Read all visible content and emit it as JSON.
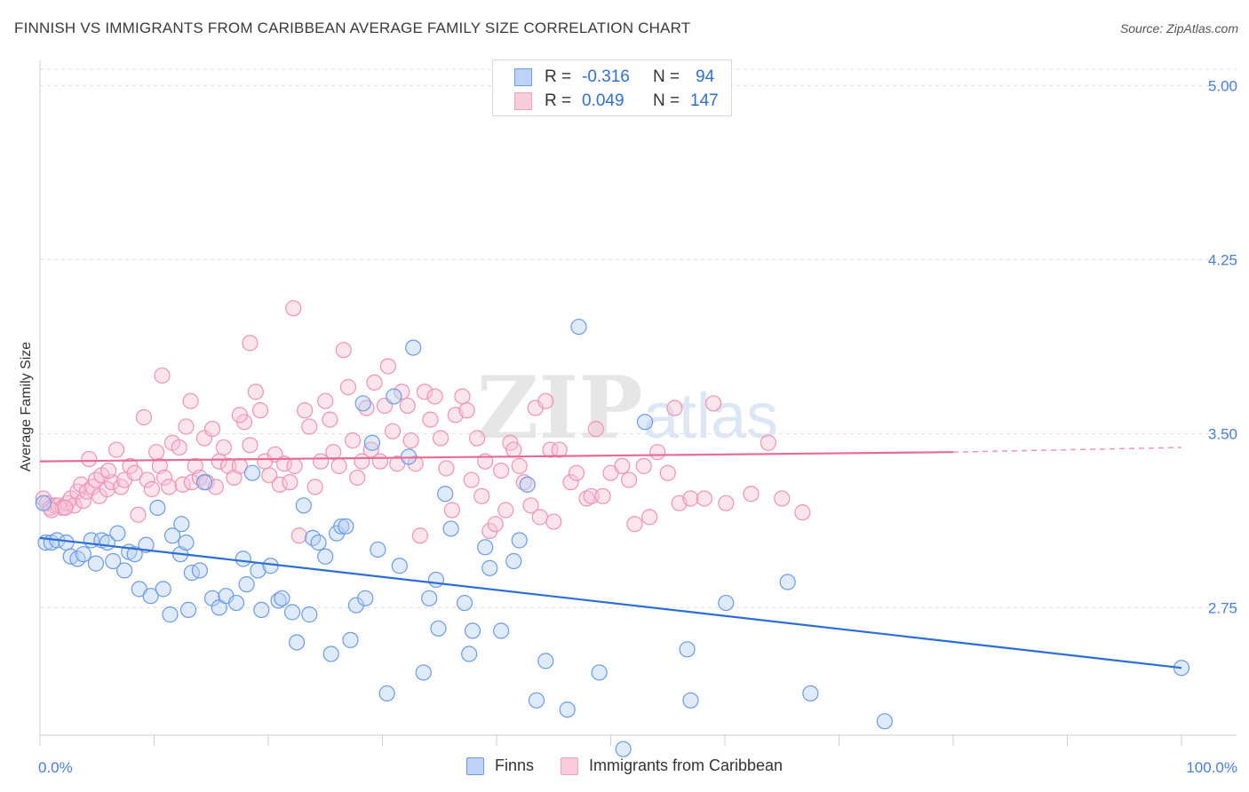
{
  "header": {
    "title": "FINNISH VS IMMIGRANTS FROM CARIBBEAN AVERAGE FAMILY SIZE CORRELATION CHART",
    "source": "Source: ZipAtlas.com"
  },
  "watermark": {
    "zip": "ZIP",
    "atlas": "atlas"
  },
  "legend_top": {
    "rows": [
      {
        "r_label": "R =",
        "r_value": "-0.316",
        "n_label": "N =",
        "n_value": "94",
        "color": "#6b9be6"
      },
      {
        "r_label": "R =",
        "r_value": "0.049",
        "n_label": "N =",
        "n_value": "147",
        "color": "#f0a0bb"
      }
    ]
  },
  "legend_bottom": {
    "items": [
      {
        "label": "Finns",
        "color": "#6b9be6"
      },
      {
        "label": "Immigrants from Caribbean",
        "color": "#f0a0bb"
      }
    ]
  },
  "chart_data": {
    "type": "scatter",
    "title": "FINNISH VS IMMIGRANTS FROM CARIBBEAN AVERAGE FAMILY SIZE CORRELATION CHART",
    "ylabel": "Average Family Size",
    "xlabel": "",
    "xlim": [
      0,
      100
    ],
    "ylim": [
      2.2,
      5.07
    ],
    "y_ticks": [
      2.75,
      3.5,
      4.25,
      5.0
    ],
    "y_tick_labels": [
      "2.75",
      "3.50",
      "4.25",
      "5.00"
    ],
    "x_tick_labels": [
      "0.0%",
      "100.0%"
    ],
    "grid": "horizontal dashed",
    "legend_placement": "top-center",
    "series": [
      {
        "name": "Finns",
        "color": "#6b9be6",
        "line_color": "#2b6fd6",
        "trend": {
          "x": [
            0,
            100
          ],
          "y": [
            3.05,
            2.49
          ]
        },
        "points": [
          [
            0.3,
            3.2
          ],
          [
            0.5,
            3.03
          ],
          [
            1.0,
            3.03
          ],
          [
            1.5,
            3.04
          ],
          [
            2.3,
            3.03
          ],
          [
            2.7,
            2.97
          ],
          [
            3.3,
            2.96
          ],
          [
            3.8,
            2.98
          ],
          [
            4.5,
            3.04
          ],
          [
            4.9,
            2.94
          ],
          [
            5.4,
            3.04
          ],
          [
            5.9,
            3.03
          ],
          [
            6.4,
            2.95
          ],
          [
            6.8,
            3.07
          ],
          [
            7.4,
            2.91
          ],
          [
            7.8,
            2.99
          ],
          [
            8.3,
            2.98
          ],
          [
            8.7,
            2.83
          ],
          [
            9.3,
            3.02
          ],
          [
            9.7,
            2.8
          ],
          [
            10.3,
            3.18
          ],
          [
            10.8,
            2.83
          ],
          [
            11.4,
            2.72
          ],
          [
            11.6,
            3.06
          ],
          [
            12.3,
            2.98
          ],
          [
            12.4,
            3.11
          ],
          [
            12.8,
            3.03
          ],
          [
            13.0,
            2.74
          ],
          [
            13.3,
            2.9
          ],
          [
            14.0,
            2.91
          ],
          [
            14.4,
            3.29
          ],
          [
            15.1,
            2.79
          ],
          [
            15.7,
            2.75
          ],
          [
            16.3,
            2.8
          ],
          [
            17.2,
            2.77
          ],
          [
            17.8,
            2.96
          ],
          [
            18.1,
            2.85
          ],
          [
            18.6,
            3.33
          ],
          [
            19.1,
            2.91
          ],
          [
            19.4,
            2.74
          ],
          [
            20.2,
            2.93
          ],
          [
            20.9,
            2.78
          ],
          [
            21.2,
            2.79
          ],
          [
            22.1,
            2.73
          ],
          [
            22.5,
            2.6
          ],
          [
            23.1,
            3.19
          ],
          [
            23.6,
            2.72
          ],
          [
            23.9,
            3.05
          ],
          [
            24.4,
            3.03
          ],
          [
            25.0,
            2.97
          ],
          [
            25.5,
            2.55
          ],
          [
            26.0,
            3.07
          ],
          [
            26.4,
            3.1
          ],
          [
            26.8,
            3.1
          ],
          [
            27.2,
            2.61
          ],
          [
            27.7,
            2.76
          ],
          [
            28.3,
            3.63
          ],
          [
            28.5,
            2.79
          ],
          [
            29.1,
            3.46
          ],
          [
            29.6,
            3.0
          ],
          [
            30.4,
            2.38
          ],
          [
            31.0,
            3.66
          ],
          [
            31.5,
            2.93
          ],
          [
            32.3,
            3.4
          ],
          [
            32.7,
            3.87
          ],
          [
            33.6,
            2.47
          ],
          [
            34.1,
            2.79
          ],
          [
            34.7,
            2.87
          ],
          [
            34.9,
            2.66
          ],
          [
            35.5,
            3.24
          ],
          [
            36.0,
            3.09
          ],
          [
            37.2,
            2.77
          ],
          [
            37.6,
            2.55
          ],
          [
            37.9,
            2.65
          ],
          [
            39.0,
            3.01
          ],
          [
            39.4,
            2.92
          ],
          [
            40.4,
            2.65
          ],
          [
            41.5,
            2.95
          ],
          [
            42.0,
            3.04
          ],
          [
            42.7,
            3.28
          ],
          [
            43.5,
            2.35
          ],
          [
            44.3,
            2.52
          ],
          [
            46.2,
            2.31
          ],
          [
            47.2,
            3.96
          ],
          [
            49.0,
            2.47
          ],
          [
            51.1,
            2.14
          ],
          [
            53.0,
            3.55
          ],
          [
            56.7,
            2.57
          ],
          [
            57.0,
            2.35
          ],
          [
            60.1,
            2.77
          ],
          [
            65.5,
            2.86
          ],
          [
            67.5,
            2.38
          ],
          [
            74.0,
            2.26
          ],
          [
            100.0,
            2.49
          ]
        ]
      },
      {
        "name": "Immigrants from Caribbean",
        "color": "#f0a0bb",
        "line_color": "#e66b95",
        "trend": {
          "x": [
            0,
            80
          ],
          "y": [
            3.38,
            3.42
          ]
        },
        "trend_dashed": {
          "x": [
            80,
            100
          ],
          "y": [
            3.42,
            3.44
          ]
        },
        "points": [
          [
            0.3,
            3.22
          ],
          [
            0.6,
            3.2
          ],
          [
            0.9,
            3.18
          ],
          [
            1.3,
            3.19
          ],
          [
            1.6,
            3.19
          ],
          [
            2.0,
            3.18
          ],
          [
            2.4,
            3.2
          ],
          [
            2.7,
            3.22
          ],
          [
            3.0,
            3.19
          ],
          [
            3.3,
            3.25
          ],
          [
            3.6,
            3.28
          ],
          [
            3.8,
            3.21
          ],
          [
            4.1,
            3.25
          ],
          [
            4.3,
            3.39
          ],
          [
            4.6,
            3.27
          ],
          [
            4.9,
            3.3
          ],
          [
            5.2,
            3.23
          ],
          [
            5.4,
            3.32
          ],
          [
            5.9,
            3.26
          ],
          [
            6.3,
            3.29
          ],
          [
            6.7,
            3.43
          ],
          [
            7.1,
            3.27
          ],
          [
            7.4,
            3.3
          ],
          [
            7.9,
            3.36
          ],
          [
            8.3,
            3.33
          ],
          [
            8.6,
            3.15
          ],
          [
            9.1,
            3.57
          ],
          [
            9.4,
            3.3
          ],
          [
            9.8,
            3.26
          ],
          [
            10.2,
            3.42
          ],
          [
            10.5,
            3.36
          ],
          [
            10.9,
            3.31
          ],
          [
            11.3,
            3.27
          ],
          [
            11.6,
            3.46
          ],
          [
            12.2,
            3.44
          ],
          [
            12.5,
            3.28
          ],
          [
            12.8,
            3.53
          ],
          [
            13.3,
            3.29
          ],
          [
            13.6,
            3.36
          ],
          [
            14.0,
            3.31
          ],
          [
            14.4,
            3.48
          ],
          [
            14.6,
            3.29
          ],
          [
            15.1,
            3.52
          ],
          [
            15.4,
            3.27
          ],
          [
            15.7,
            3.38
          ],
          [
            16.1,
            3.44
          ],
          [
            16.5,
            3.36
          ],
          [
            17.0,
            3.31
          ],
          [
            17.5,
            3.36
          ],
          [
            17.9,
            3.55
          ],
          [
            18.4,
            3.45
          ],
          [
            18.9,
            3.68
          ],
          [
            19.3,
            3.6
          ],
          [
            19.7,
            3.38
          ],
          [
            20.1,
            3.32
          ],
          [
            20.6,
            3.41
          ],
          [
            21.0,
            3.28
          ],
          [
            21.4,
            3.37
          ],
          [
            21.9,
            3.29
          ],
          [
            22.3,
            3.36
          ],
          [
            22.7,
            3.06
          ],
          [
            23.2,
            3.6
          ],
          [
            23.6,
            3.53
          ],
          [
            24.1,
            3.27
          ],
          [
            24.6,
            3.38
          ],
          [
            25.0,
            3.64
          ],
          [
            25.4,
            3.56
          ],
          [
            25.7,
            3.42
          ],
          [
            26.2,
            3.36
          ],
          [
            26.6,
            3.86
          ],
          [
            27.0,
            3.7
          ],
          [
            27.4,
            3.47
          ],
          [
            27.8,
            3.31
          ],
          [
            28.2,
            3.38
          ],
          [
            28.6,
            3.61
          ],
          [
            29.0,
            3.43
          ],
          [
            29.3,
            3.72
          ],
          [
            29.8,
            3.38
          ],
          [
            30.2,
            3.62
          ],
          [
            30.5,
            3.79
          ],
          [
            30.9,
            3.51
          ],
          [
            31.3,
            3.37
          ],
          [
            31.7,
            3.68
          ],
          [
            32.2,
            3.62
          ],
          [
            32.5,
            3.47
          ],
          [
            32.9,
            3.37
          ],
          [
            33.3,
            3.06
          ],
          [
            33.7,
            3.68
          ],
          [
            34.2,
            3.56
          ],
          [
            34.6,
            3.66
          ],
          [
            35.1,
            3.48
          ],
          [
            35.6,
            3.35
          ],
          [
            36.1,
            3.17
          ],
          [
            36.4,
            3.58
          ],
          [
            37.0,
            3.66
          ],
          [
            37.4,
            3.6
          ],
          [
            37.8,
            3.3
          ],
          [
            38.3,
            3.48
          ],
          [
            38.7,
            3.23
          ],
          [
            39.0,
            3.38
          ],
          [
            39.4,
            3.08
          ],
          [
            39.9,
            3.11
          ],
          [
            40.4,
            3.34
          ],
          [
            40.8,
            3.17
          ],
          [
            41.2,
            3.46
          ],
          [
            41.5,
            3.43
          ],
          [
            42.0,
            3.36
          ],
          [
            42.4,
            3.29
          ],
          [
            43.0,
            3.19
          ],
          [
            43.4,
            3.61
          ],
          [
            43.8,
            3.14
          ],
          [
            44.3,
            3.64
          ],
          [
            44.7,
            3.43
          ],
          [
            45.0,
            3.12
          ],
          [
            45.5,
            3.43
          ],
          [
            46.5,
            3.29
          ],
          [
            47.0,
            3.33
          ],
          [
            47.9,
            3.22
          ],
          [
            48.3,
            3.23
          ],
          [
            48.7,
            3.52
          ],
          [
            49.3,
            3.23
          ],
          [
            50.0,
            3.33
          ],
          [
            51.0,
            3.36
          ],
          [
            51.6,
            3.3
          ],
          [
            52.1,
            3.11
          ],
          [
            52.9,
            3.36
          ],
          [
            53.4,
            3.14
          ],
          [
            54.1,
            3.42
          ],
          [
            55.0,
            3.33
          ],
          [
            55.6,
            3.61
          ],
          [
            56.0,
            3.2
          ],
          [
            57.0,
            3.22
          ],
          [
            58.2,
            3.22
          ],
          [
            59.0,
            3.63
          ],
          [
            60.1,
            3.2
          ],
          [
            62.3,
            3.24
          ],
          [
            63.8,
            3.46
          ],
          [
            65.0,
            3.22
          ],
          [
            66.8,
            3.16
          ],
          [
            18.4,
            3.89
          ],
          [
            22.2,
            4.04
          ],
          [
            10.7,
            3.75
          ],
          [
            6.0,
            3.34
          ],
          [
            2.2,
            3.18
          ],
          [
            1.0,
            3.17
          ],
          [
            13.2,
            3.64
          ],
          [
            17.5,
            3.58
          ]
        ]
      }
    ]
  }
}
